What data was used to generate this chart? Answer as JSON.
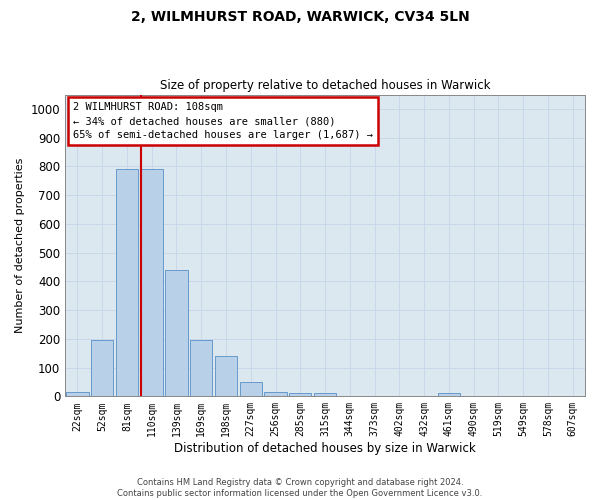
{
  "title": "2, WILMHURST ROAD, WARWICK, CV34 5LN",
  "subtitle": "Size of property relative to detached houses in Warwick",
  "xlabel": "Distribution of detached houses by size in Warwick",
  "ylabel": "Number of detached properties",
  "bar_labels": [
    "22sqm",
    "52sqm",
    "81sqm",
    "110sqm",
    "139sqm",
    "169sqm",
    "198sqm",
    "227sqm",
    "256sqm",
    "285sqm",
    "315sqm",
    "344sqm",
    "373sqm",
    "402sqm",
    "432sqm",
    "461sqm",
    "490sqm",
    "519sqm",
    "549sqm",
    "578sqm",
    "607sqm"
  ],
  "bar_values": [
    15,
    195,
    790,
    790,
    440,
    195,
    140,
    50,
    15,
    10,
    10,
    0,
    0,
    0,
    0,
    10,
    0,
    0,
    0,
    0,
    0
  ],
  "bar_color": "#b8d0e8",
  "bar_edge_color": "#6699cc",
  "grid_color": "#c8d8e8",
  "background_color": "#dce8f0",
  "vline_color": "#cc0000",
  "vline_index": 3,
  "annotation_text": "2 WILMHURST ROAD: 108sqm\n← 34% of detached houses are smaller (880)\n65% of semi-detached houses are larger (1,687) →",
  "annotation_box_color": "#ffffff",
  "annotation_box_edge": "#cc0000",
  "ylim": [
    0,
    1050
  ],
  "yticks": [
    0,
    100,
    200,
    300,
    400,
    500,
    600,
    700,
    800,
    900,
    1000
  ],
  "footer_line1": "Contains HM Land Registry data © Crown copyright and database right 2024.",
  "footer_line2": "Contains public sector information licensed under the Open Government Licence v3.0."
}
